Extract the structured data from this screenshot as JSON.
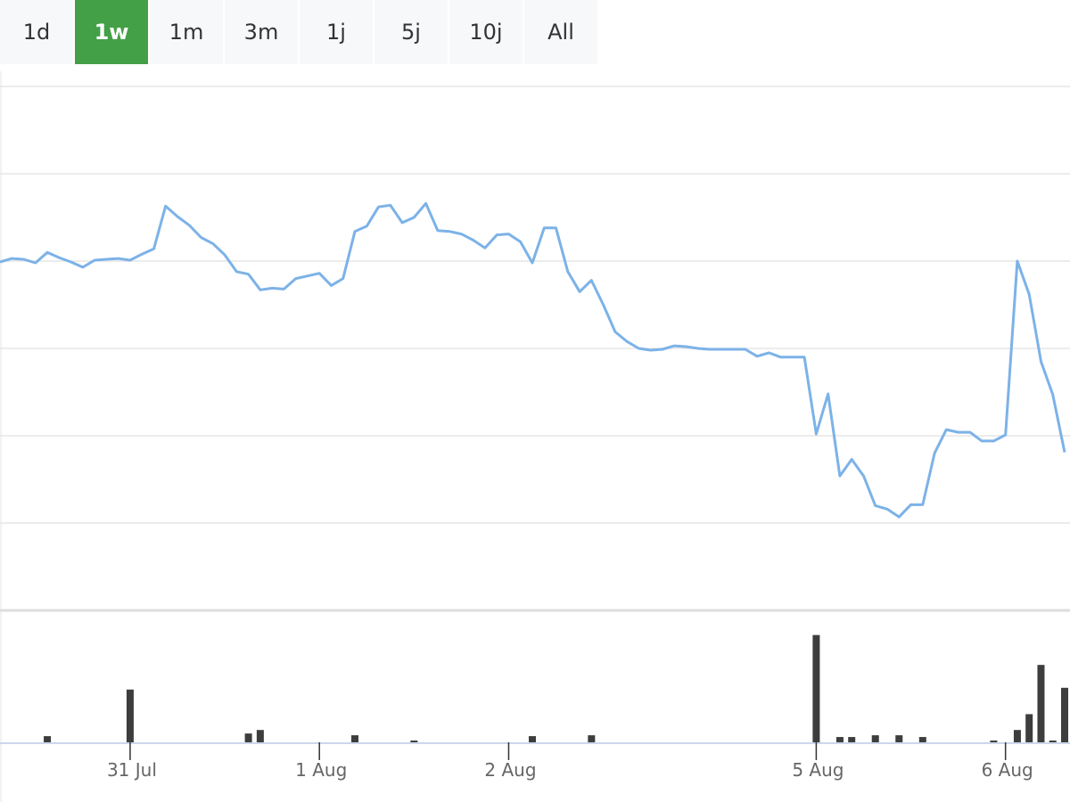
{
  "range_selector": {
    "options": [
      "1d",
      "1w",
      "1m",
      "3m",
      "1j",
      "5j",
      "10j",
      "All"
    ],
    "selected": 1
  },
  "chart_data": {
    "type": "line",
    "color": "#7cb2e8",
    "values": [
      3.99,
      4.03,
      4.02,
      3.98,
      4.1,
      4.04,
      3.99,
      3.93,
      4.01,
      4.02,
      4.03,
      4.01,
      4.08,
      4.14,
      4.63,
      4.51,
      4.41,
      4.27,
      4.2,
      4.07,
      3.88,
      3.85,
      3.67,
      3.69,
      3.68,
      3.8,
      3.83,
      3.86,
      3.72,
      3.8,
      4.34,
      4.4,
      4.62,
      4.64,
      4.44,
      4.5,
      4.66,
      4.35,
      4.34,
      4.31,
      4.24,
      4.15,
      4.3,
      4.31,
      4.22,
      3.98,
      4.38,
      4.38,
      3.88,
      3.65,
      3.78,
      3.5,
      3.19,
      3.08,
      3.0,
      2.98,
      2.99,
      3.03,
      3.02,
      3.0,
      2.99,
      2.99,
      2.99,
      2.99,
      2.91,
      2.95,
      2.9,
      2.9,
      2.9,
      2.02,
      2.48,
      1.54,
      1.73,
      1.54,
      1.2,
      1.16,
      1.07,
      1.21,
      1.21,
      1.8,
      2.07,
      2.04,
      2.04,
      1.94,
      1.94,
      2.01,
      4.0,
      3.62,
      2.85,
      2.47,
      1.81
    ],
    "ylim": [
      0,
      6
    ],
    "yticks": [
      0,
      1,
      2,
      3,
      4,
      5,
      6
    ],
    "grid": true,
    "xlim": [
      0,
      90
    ],
    "xticks": [
      {
        "value": 11,
        "label": "31 Jul"
      },
      {
        "value": 27,
        "label": "1 Aug"
      },
      {
        "value": 43,
        "label": "2 Aug"
      },
      {
        "value": 69,
        "label": "5 Aug"
      },
      {
        "value": 85,
        "label": "6 Aug"
      }
    ],
    "volume": {
      "type": "bar",
      "color": "#3d3d3d",
      "ylim": [
        0,
        150
      ],
      "values": [
        0,
        0,
        0,
        0,
        7,
        0,
        0,
        0,
        0,
        0,
        0,
        60,
        0,
        0,
        0,
        0,
        0,
        0,
        0,
        0,
        0,
        10,
        14,
        0,
        0,
        0,
        0,
        0,
        0,
        0,
        8,
        0,
        0,
        0,
        0,
        2,
        0,
        0,
        0,
        0,
        0,
        0,
        0,
        0,
        0,
        7,
        0,
        0,
        0,
        0,
        8,
        0,
        0,
        0,
        0,
        0,
        0,
        0,
        0,
        0,
        0,
        0,
        0,
        0,
        0,
        0,
        0,
        0,
        0,
        122,
        0,
        6,
        6,
        0,
        8,
        0,
        8,
        0,
        6,
        0,
        0,
        0,
        0,
        0,
        2,
        0,
        14,
        32,
        88,
        2,
        62
      ]
    }
  }
}
